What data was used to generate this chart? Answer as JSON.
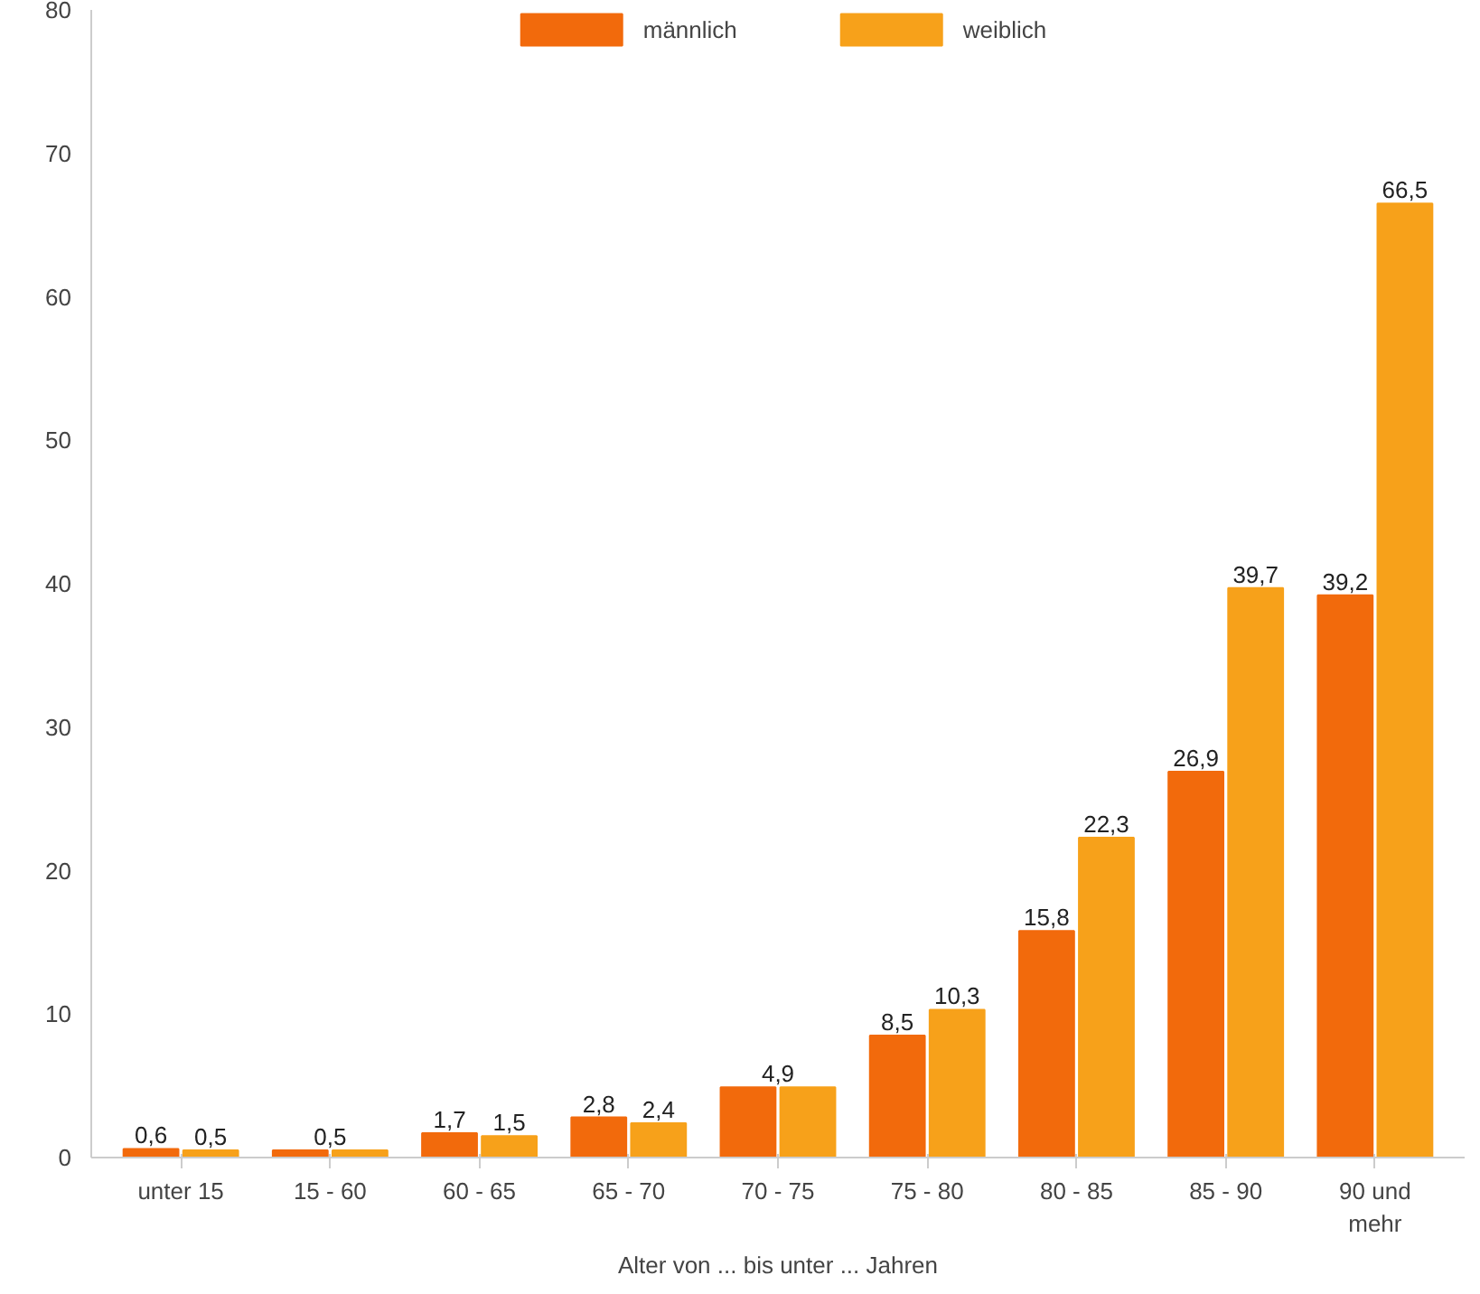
{
  "chart_data": {
    "type": "bar",
    "xlabel": "Alter von ... bis unter ... Jahren",
    "categories": [
      "unter 15",
      "15 - 60",
      "60 - 65",
      "65 - 70",
      "70 - 75",
      "75 - 80",
      "80 - 85",
      "85 - 90",
      "90 und\nmehr"
    ],
    "series": [
      {
        "name": "männlich",
        "color": "#f26a0c",
        "values": [
          0.6,
          0.5,
          1.7,
          2.8,
          4.9,
          8.5,
          15.8,
          26.9,
          39.2
        ],
        "value_labels": [
          "0,6",
          null,
          "1,7",
          "2,8",
          null,
          "8,5",
          "15,8",
          "26,9",
          "39,2"
        ]
      },
      {
        "name": "weiblich",
        "color": "#f7a11a",
        "values": [
          0.5,
          0.5,
          1.5,
          2.4,
          4.9,
          10.3,
          22.3,
          39.7,
          66.5
        ],
        "value_labels": [
          "0,5",
          null,
          "1,5",
          "2,4",
          null,
          "10,3",
          "22,3",
          "39,7",
          "66,5"
        ]
      }
    ],
    "annotations": [
      {
        "text": "0,5",
        "x": "15 - 60",
        "y": 0.5
      },
      {
        "text": "4,9",
        "x": "70 - 75",
        "y": 4.9
      }
    ],
    "ylim": [
      0,
      80
    ],
    "yticks": [
      0,
      10,
      20,
      30,
      40,
      50,
      60,
      70,
      80
    ],
    "grid": false,
    "legend": "top"
  }
}
